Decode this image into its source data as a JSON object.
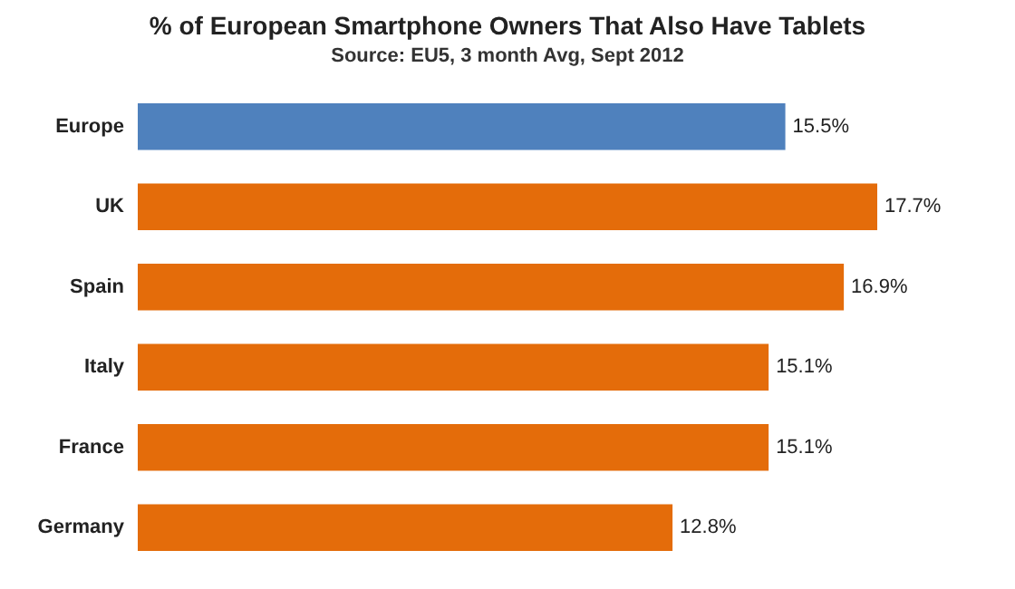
{
  "chart_data": {
    "type": "bar",
    "orientation": "horizontal",
    "title": "% of European Smartphone Owners That Also Have Tablets",
    "subtitle": "Source: EU5, 3 month Avg, Sept 2012",
    "categories": [
      "Europe",
      "UK",
      "Spain",
      "Italy",
      "France",
      "Germany"
    ],
    "values": [
      15.5,
      17.7,
      16.9,
      15.1,
      15.1,
      12.8
    ],
    "colors": [
      "#4f81bd",
      "#e46c0a",
      "#e46c0a",
      "#e46c0a",
      "#e46c0a",
      "#e46c0a"
    ],
    "value_labels": [
      "15.5%",
      "17.7%",
      "16.9%",
      "15.1%",
      "15.1%",
      "12.8%"
    ]
  }
}
